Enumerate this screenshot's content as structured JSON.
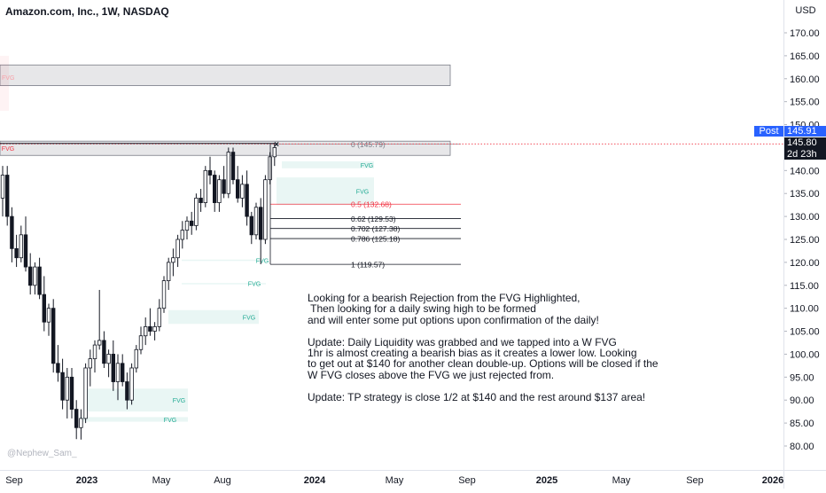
{
  "header": {
    "title": "Amazon.com, Inc., 1W, NASDAQ",
    "currency": "USD"
  },
  "price_axis": {
    "ticks": [
      "170.00",
      "165.00",
      "160.00",
      "155.00",
      "150.00",
      "145.00",
      "140.00",
      "135.00",
      "130.00",
      "125.00",
      "120.00",
      "115.00",
      "110.00",
      "105.00",
      "100.00",
      "95.00",
      "90.00",
      "85.00",
      "80.00"
    ],
    "post_label": "Post",
    "post_price": "145.91",
    "last_price": "145.80",
    "countdown": "2d 23h"
  },
  "time_axis": {
    "labels": [
      "Sep",
      "2023",
      "May",
      "Aug",
      "2024",
      "May",
      "Sep",
      "2025",
      "May",
      "Sep",
      "2026"
    ]
  },
  "fib_levels": [
    {
      "label": "0 (145.79)",
      "price": 145.79,
      "color": "#787b86"
    },
    {
      "label": "0.5 (132.68)",
      "price": 132.68,
      "color": "#f23645"
    },
    {
      "label": "0.62 (129.53)",
      "price": 129.53,
      "color": "#131722"
    },
    {
      "label": "0.702 (127.38)",
      "price": 127.38,
      "color": "#131722"
    },
    {
      "label": "0.786 (125.18)",
      "price": 125.18,
      "color": "#131722"
    },
    {
      "label": "1 (119.57)",
      "price": 119.57,
      "color": "#131722"
    }
  ],
  "fvg_label": "FVG",
  "notes": "Looking for a bearish Rejection from the FVG Highlighted,\n Then looking for a daily swing high to be formed\nand will enter some put options upon confirmation of the daily!\n\nUpdate: Daily Liquidity was grabbed and we tapped into a W FVG\n1hr is almost creating a bearish bias as it creates a lower low. Looking\nto get out at $140 for another clean double-up. Options will be closed if the\nW FVG closes above the FVG we just rejected from.\n\nUpdate: TP strategy is close 1/2 at $140 and the rest around $137 area!",
  "watermark": "@Nephew_Sam_",
  "chart_data": {
    "type": "candlestick",
    "symbol": "Amazon.com, Inc.",
    "interval": "1W",
    "exchange": "NASDAQ",
    "currency": "USD",
    "ylim": [
      77,
      175
    ],
    "fib_levels": [
      145.79,
      132.68,
      129.53,
      127.38,
      125.18,
      119.57
    ],
    "candles": [
      {
        "o": 134,
        "h": 141,
        "l": 130,
        "c": 139
      },
      {
        "o": 139,
        "h": 141,
        "l": 128,
        "c": 130
      },
      {
        "o": 130,
        "h": 132,
        "l": 120,
        "c": 123
      },
      {
        "o": 123,
        "h": 126,
        "l": 119,
        "c": 121
      },
      {
        "o": 121,
        "h": 128,
        "l": 120,
        "c": 126
      },
      {
        "o": 126,
        "h": 130,
        "l": 118,
        "c": 119
      },
      {
        "o": 119,
        "h": 122,
        "l": 113,
        "c": 115
      },
      {
        "o": 115,
        "h": 120,
        "l": 113,
        "c": 119
      },
      {
        "o": 119,
        "h": 121,
        "l": 112,
        "c": 113
      },
      {
        "o": 113,
        "h": 117,
        "l": 105,
        "c": 107
      },
      {
        "o": 107,
        "h": 111,
        "l": 104,
        "c": 110
      },
      {
        "o": 110,
        "h": 112,
        "l": 96,
        "c": 98
      },
      {
        "o": 98,
        "h": 102,
        "l": 94,
        "c": 96
      },
      {
        "o": 96,
        "h": 99,
        "l": 88,
        "c": 90
      },
      {
        "o": 90,
        "h": 97,
        "l": 86,
        "c": 95
      },
      {
        "o": 95,
        "h": 97,
        "l": 86,
        "c": 88
      },
      {
        "o": 88,
        "h": 90,
        "l": 81.5,
        "c": 84
      },
      {
        "o": 84,
        "h": 88,
        "l": 81.4,
        "c": 86
      },
      {
        "o": 86,
        "h": 98,
        "l": 85,
        "c": 97
      },
      {
        "o": 97,
        "h": 101,
        "l": 93,
        "c": 99
      },
      {
        "o": 99,
        "h": 103,
        "l": 96,
        "c": 102
      },
      {
        "o": 102,
        "h": 114,
        "l": 101,
        "c": 103
      },
      {
        "o": 103,
        "h": 105,
        "l": 97,
        "c": 98
      },
      {
        "o": 98,
        "h": 101,
        "l": 95,
        "c": 100
      },
      {
        "o": 100,
        "h": 103,
        "l": 92,
        "c": 94
      },
      {
        "o": 94,
        "h": 100,
        "l": 90,
        "c": 98
      },
      {
        "o": 98,
        "h": 100,
        "l": 93,
        "c": 94
      },
      {
        "o": 94,
        "h": 96,
        "l": 88,
        "c": 90
      },
      {
        "o": 90,
        "h": 98,
        "l": 89,
        "c": 97
      },
      {
        "o": 97,
        "h": 102,
        "l": 96,
        "c": 101
      },
      {
        "o": 101,
        "h": 106,
        "l": 100,
        "c": 104
      },
      {
        "o": 104,
        "h": 108,
        "l": 102,
        "c": 106
      },
      {
        "o": 106,
        "h": 110,
        "l": 104,
        "c": 105
      },
      {
        "o": 105,
        "h": 107,
        "l": 103,
        "c": 106
      },
      {
        "o": 106,
        "h": 112,
        "l": 105,
        "c": 110
      },
      {
        "o": 110,
        "h": 117,
        "l": 109,
        "c": 116
      },
      {
        "o": 116,
        "h": 121,
        "l": 114,
        "c": 120
      },
      {
        "o": 120,
        "h": 123,
        "l": 117,
        "c": 121
      },
      {
        "o": 121,
        "h": 126,
        "l": 119,
        "c": 125
      },
      {
        "o": 125,
        "h": 129,
        "l": 123,
        "c": 127
      },
      {
        "o": 127,
        "h": 130,
        "l": 125,
        "c": 129
      },
      {
        "o": 129,
        "h": 131,
        "l": 126,
        "c": 128
      },
      {
        "o": 128,
        "h": 135,
        "l": 127,
        "c": 134
      },
      {
        "o": 134,
        "h": 136,
        "l": 131,
        "c": 133
      },
      {
        "o": 133,
        "h": 141,
        "l": 132,
        "c": 140
      },
      {
        "o": 140,
        "h": 143,
        "l": 137,
        "c": 139
      },
      {
        "o": 139,
        "h": 140,
        "l": 131,
        "c": 133
      },
      {
        "o": 133,
        "h": 139,
        "l": 131,
        "c": 138
      },
      {
        "o": 138,
        "h": 141,
        "l": 134,
        "c": 135
      },
      {
        "o": 135,
        "h": 145,
        "l": 134,
        "c": 144
      },
      {
        "o": 144,
        "h": 145,
        "l": 137,
        "c": 138
      },
      {
        "o": 138,
        "h": 141,
        "l": 133,
        "c": 134
      },
      {
        "o": 134,
        "h": 139,
        "l": 132,
        "c": 137
      },
      {
        "o": 137,
        "h": 140,
        "l": 128,
        "c": 130
      },
      {
        "o": 130,
        "h": 131,
        "l": 124,
        "c": 126
      },
      {
        "o": 126,
        "h": 133,
        "l": 125,
        "c": 132
      },
      {
        "o": 132,
        "h": 134,
        "l": 119.6,
        "c": 125
      },
      {
        "o": 125,
        "h": 139,
        "l": 124,
        "c": 138
      },
      {
        "o": 138,
        "h": 144,
        "l": 137,
        "c": 143
      },
      {
        "o": 143,
        "h": 146,
        "l": 141,
        "c": 145
      }
    ],
    "fvg_zones": [
      {
        "price_top": 146.4,
        "price_bottom": 143.3,
        "bearish": true
      },
      {
        "price_top": 163,
        "price_bottom": 158.5,
        "bearish": true
      },
      {
        "price_top": 142,
        "price_bottom": 140.5,
        "bearish": false
      },
      {
        "price_top": 138.5,
        "price_bottom": 132.5,
        "bearish": false
      },
      {
        "price_top": 120.6,
        "price_bottom": 120.3,
        "bearish": false
      },
      {
        "price_top": 115.5,
        "price_bottom": 115.3,
        "bearish": false
      },
      {
        "price_top": 109.6,
        "price_bottom": 106.6,
        "bearish": false
      },
      {
        "price_top": 92.5,
        "price_bottom": 87.5,
        "bearish": false
      },
      {
        "price_top": 86.3,
        "price_bottom": 85.3,
        "bearish": false
      }
    ]
  }
}
